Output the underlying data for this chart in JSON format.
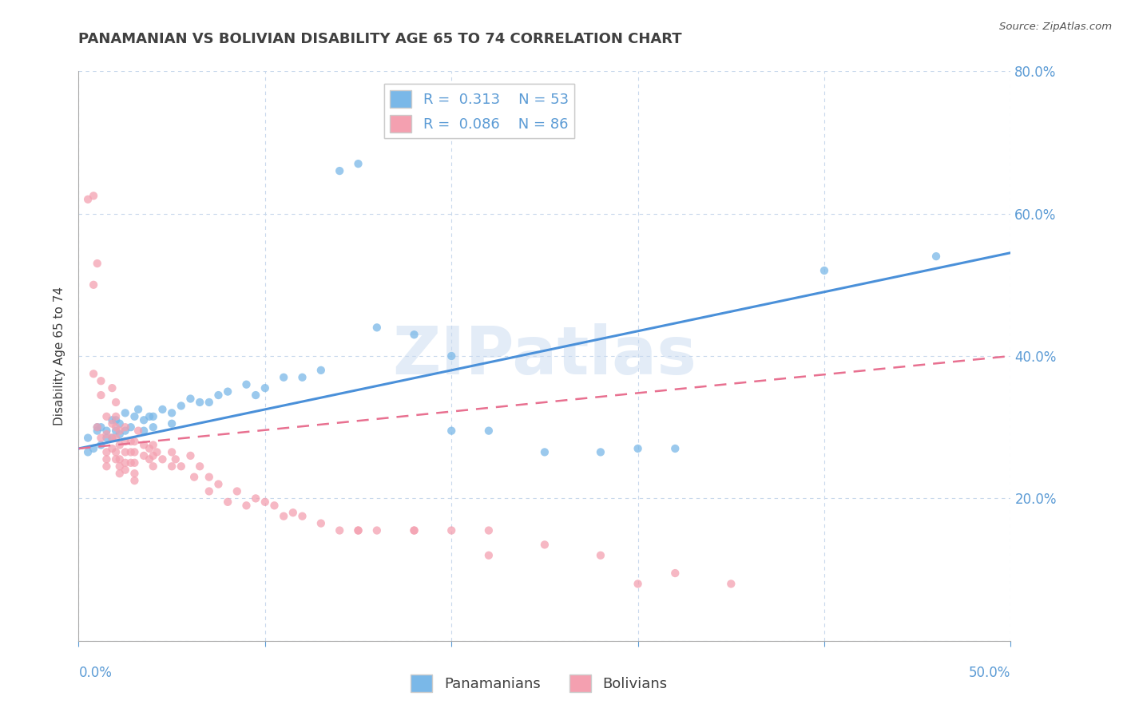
{
  "title": "PANAMANIAN VS BOLIVIAN DISABILITY AGE 65 TO 74 CORRELATION CHART",
  "source_text": "Source: ZipAtlas.com",
  "ylabel": "Disability Age 65 to 74",
  "xlim": [
    0.0,
    0.5
  ],
  "ylim": [
    0.0,
    0.8
  ],
  "xticks": [
    0.0,
    0.1,
    0.2,
    0.3,
    0.4,
    0.5
  ],
  "yticks": [
    0.0,
    0.2,
    0.4,
    0.6,
    0.8
  ],
  "ytick_labels_right": [
    "",
    "20.0%",
    "40.0%",
    "60.0%",
    "80.0%"
  ],
  "panamanian_color": "#7ab8e8",
  "bolivian_color": "#f4a0b0",
  "panamanian_R": 0.313,
  "panamanian_N": 53,
  "bolivian_R": 0.086,
  "bolivian_N": 86,
  "panamanian_scatter": [
    [
      0.005,
      0.265
    ],
    [
      0.005,
      0.285
    ],
    [
      0.008,
      0.27
    ],
    [
      0.01,
      0.3
    ],
    [
      0.01,
      0.295
    ],
    [
      0.012,
      0.275
    ],
    [
      0.012,
      0.3
    ],
    [
      0.015,
      0.285
    ],
    [
      0.015,
      0.295
    ],
    [
      0.018,
      0.31
    ],
    [
      0.018,
      0.285
    ],
    [
      0.02,
      0.295
    ],
    [
      0.02,
      0.31
    ],
    [
      0.022,
      0.305
    ],
    [
      0.022,
      0.29
    ],
    [
      0.025,
      0.32
    ],
    [
      0.025,
      0.295
    ],
    [
      0.028,
      0.3
    ],
    [
      0.03,
      0.315
    ],
    [
      0.032,
      0.325
    ],
    [
      0.035,
      0.31
    ],
    [
      0.035,
      0.295
    ],
    [
      0.038,
      0.315
    ],
    [
      0.04,
      0.315
    ],
    [
      0.04,
      0.3
    ],
    [
      0.045,
      0.325
    ],
    [
      0.05,
      0.32
    ],
    [
      0.05,
      0.305
    ],
    [
      0.055,
      0.33
    ],
    [
      0.06,
      0.34
    ],
    [
      0.065,
      0.335
    ],
    [
      0.07,
      0.335
    ],
    [
      0.075,
      0.345
    ],
    [
      0.08,
      0.35
    ],
    [
      0.09,
      0.36
    ],
    [
      0.095,
      0.345
    ],
    [
      0.1,
      0.355
    ],
    [
      0.11,
      0.37
    ],
    [
      0.12,
      0.37
    ],
    [
      0.13,
      0.38
    ],
    [
      0.14,
      0.66
    ],
    [
      0.15,
      0.67
    ],
    [
      0.16,
      0.44
    ],
    [
      0.18,
      0.43
    ],
    [
      0.2,
      0.4
    ],
    [
      0.2,
      0.295
    ],
    [
      0.22,
      0.295
    ],
    [
      0.25,
      0.265
    ],
    [
      0.28,
      0.265
    ],
    [
      0.3,
      0.27
    ],
    [
      0.32,
      0.27
    ],
    [
      0.4,
      0.52
    ],
    [
      0.46,
      0.54
    ]
  ],
  "bolivian_scatter": [
    [
      0.005,
      0.62
    ],
    [
      0.008,
      0.625
    ],
    [
      0.008,
      0.5
    ],
    [
      0.008,
      0.375
    ],
    [
      0.01,
      0.53
    ],
    [
      0.01,
      0.3
    ],
    [
      0.012,
      0.365
    ],
    [
      0.012,
      0.345
    ],
    [
      0.012,
      0.285
    ],
    [
      0.015,
      0.315
    ],
    [
      0.015,
      0.29
    ],
    [
      0.015,
      0.265
    ],
    [
      0.015,
      0.255
    ],
    [
      0.015,
      0.245
    ],
    [
      0.018,
      0.355
    ],
    [
      0.018,
      0.305
    ],
    [
      0.018,
      0.285
    ],
    [
      0.018,
      0.27
    ],
    [
      0.02,
      0.335
    ],
    [
      0.02,
      0.315
    ],
    [
      0.02,
      0.3
    ],
    [
      0.02,
      0.285
    ],
    [
      0.02,
      0.265
    ],
    [
      0.02,
      0.255
    ],
    [
      0.022,
      0.295
    ],
    [
      0.022,
      0.275
    ],
    [
      0.022,
      0.255
    ],
    [
      0.022,
      0.245
    ],
    [
      0.022,
      0.235
    ],
    [
      0.025,
      0.3
    ],
    [
      0.025,
      0.28
    ],
    [
      0.025,
      0.265
    ],
    [
      0.025,
      0.25
    ],
    [
      0.025,
      0.24
    ],
    [
      0.028,
      0.28
    ],
    [
      0.028,
      0.265
    ],
    [
      0.028,
      0.25
    ],
    [
      0.03,
      0.28
    ],
    [
      0.03,
      0.265
    ],
    [
      0.03,
      0.25
    ],
    [
      0.03,
      0.235
    ],
    [
      0.03,
      0.225
    ],
    [
      0.032,
      0.295
    ],
    [
      0.035,
      0.275
    ],
    [
      0.035,
      0.26
    ],
    [
      0.038,
      0.27
    ],
    [
      0.038,
      0.255
    ],
    [
      0.04,
      0.275
    ],
    [
      0.04,
      0.26
    ],
    [
      0.04,
      0.245
    ],
    [
      0.042,
      0.265
    ],
    [
      0.045,
      0.255
    ],
    [
      0.05,
      0.265
    ],
    [
      0.05,
      0.245
    ],
    [
      0.052,
      0.255
    ],
    [
      0.055,
      0.245
    ],
    [
      0.06,
      0.26
    ],
    [
      0.062,
      0.23
    ],
    [
      0.065,
      0.245
    ],
    [
      0.07,
      0.23
    ],
    [
      0.07,
      0.21
    ],
    [
      0.075,
      0.22
    ],
    [
      0.08,
      0.195
    ],
    [
      0.085,
      0.21
    ],
    [
      0.09,
      0.19
    ],
    [
      0.095,
      0.2
    ],
    [
      0.1,
      0.195
    ],
    [
      0.105,
      0.19
    ],
    [
      0.11,
      0.175
    ],
    [
      0.115,
      0.18
    ],
    [
      0.12,
      0.175
    ],
    [
      0.13,
      0.165
    ],
    [
      0.14,
      0.155
    ],
    [
      0.15,
      0.155
    ],
    [
      0.16,
      0.155
    ],
    [
      0.18,
      0.155
    ],
    [
      0.2,
      0.155
    ],
    [
      0.22,
      0.155
    ],
    [
      0.25,
      0.135
    ],
    [
      0.3,
      0.08
    ],
    [
      0.32,
      0.095
    ],
    [
      0.35,
      0.08
    ],
    [
      0.15,
      0.155
    ],
    [
      0.28,
      0.12
    ],
    [
      0.18,
      0.155
    ],
    [
      0.22,
      0.12
    ]
  ],
  "watermark": "ZIPatlas",
  "title_color": "#404040",
  "axis_color": "#5b9bd5",
  "tick_color": "#5b9bd5",
  "grid_color": "#c8d8ec",
  "panamanian_line_color": "#4a90d9",
  "bolivian_line_color": "#e87090",
  "background_color": "#ffffff"
}
